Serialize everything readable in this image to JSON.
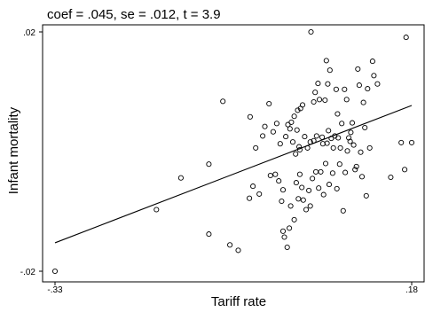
{
  "chart_data": {
    "type": "scatter",
    "annotation": "coef = .045, se = .012, t = 3.9",
    "xlabel": "Tariff rate",
    "ylabel": "Infant mortality",
    "xlim": [
      -0.33,
      0.18
    ],
    "ylim": [
      -0.02,
      0.02
    ],
    "x_ticks": [
      {
        "value": -0.33,
        "label": "-.33"
      },
      {
        "value": 0.18,
        "label": ".18"
      }
    ],
    "y_ticks": [
      {
        "value": 0.02,
        "label": ".02"
      },
      {
        "value": -0.02,
        "label": "-.02"
      }
    ],
    "grid": false,
    "fit_line": {
      "slope": 0.045,
      "intercept": -0.0004
    },
    "points": [
      [
        -0.33,
        -0.02
      ],
      [
        -0.185,
        -0.0097
      ],
      [
        -0.15,
        -0.0044
      ],
      [
        -0.11,
        -0.0138
      ],
      [
        -0.11,
        -0.0021
      ],
      [
        -0.09,
        0.0084
      ],
      [
        -0.08,
        -0.0156
      ],
      [
        -0.068,
        -0.0165
      ],
      [
        -0.052,
        -0.0078
      ],
      [
        -0.051,
        0.0058
      ],
      [
        -0.047,
        -0.0058
      ],
      [
        -0.043,
        0.0006
      ],
      [
        -0.038,
        -0.0071
      ],
      [
        -0.033,
        0.0026
      ],
      [
        -0.03,
        0.0042
      ],
      [
        -0.024,
        0.008
      ],
      [
        -0.022,
        -0.004
      ],
      [
        -0.018,
        0.0033
      ],
      [
        -0.015,
        -0.0038
      ],
      [
        -0.013,
        0.0047
      ],
      [
        -0.01,
        -0.0049
      ],
      [
        -0.008,
        0.0013
      ],
      [
        -0.006,
        -0.0083
      ],
      [
        -0.004,
        -0.0064
      ],
      [
        -0.004,
        -0.0133
      ],
      [
        -0.002,
        -0.0143
      ],
      [
        0.0,
        0.0025
      ],
      [
        0.002,
        -0.016
      ],
      [
        0.003,
        0.0045
      ],
      [
        0.005,
        -0.0128
      ],
      [
        0.006,
        0.0038
      ],
      [
        0.007,
        -0.0091
      ],
      [
        0.008,
        0.0049
      ],
      [
        0.01,
        0.0016
      ],
      [
        0.012,
        0.0059
      ],
      [
        0.012,
        -0.0114
      ],
      [
        0.014,
        -0.0004
      ],
      [
        0.015,
        -0.0052
      ],
      [
        0.016,
        0.0036
      ],
      [
        0.017,
        0.0069
      ],
      [
        0.018,
        -0.0079
      ],
      [
        0.019,
        0.0008
      ],
      [
        0.02,
        -0.0038
      ],
      [
        0.02,
        0.0003
      ],
      [
        0.021,
        0.0072
      ],
      [
        0.023,
        -0.006
      ],
      [
        0.024,
        0.0078
      ],
      [
        0.025,
        -0.0081
      ],
      [
        0.027,
        0.0025
      ],
      [
        0.029,
        -0.0097
      ],
      [
        0.031,
        0.0006
      ],
      [
        0.033,
        -0.0065
      ],
      [
        0.035,
        0.0016
      ],
      [
        0.035,
        -0.0091
      ],
      [
        0.036,
        0.02
      ],
      [
        0.038,
        -0.0045
      ],
      [
        0.04,
        0.0083
      ],
      [
        0.04,
        0.0018
      ],
      [
        0.042,
        0.0099
      ],
      [
        0.043,
        -0.0034
      ],
      [
        0.044,
        0.0026
      ],
      [
        0.046,
        0.0114
      ],
      [
        0.047,
        -0.0061
      ],
      [
        0.048,
        0.0087
      ],
      [
        0.05,
        -0.0034
      ],
      [
        0.052,
        0.0024
      ],
      [
        0.053,
        0.0013
      ],
      [
        0.054,
        -0.0072
      ],
      [
        0.056,
        0.0086
      ],
      [
        0.057,
        -0.002
      ],
      [
        0.058,
        0.0152
      ],
      [
        0.059,
        0.0014
      ],
      [
        0.06,
        0.0113
      ],
      [
        0.061,
        0.0035
      ],
      [
        0.062,
        -0.0055
      ],
      [
        0.063,
        0.0136
      ],
      [
        0.065,
        0.0022
      ],
      [
        0.067,
        -0.0036
      ],
      [
        0.068,
        0.0006
      ],
      [
        0.07,
        0.0026
      ],
      [
        0.072,
        0.0104
      ],
      [
        0.073,
        -0.0062
      ],
      [
        0.074,
        0.0063
      ],
      [
        0.075,
        0.0023
      ],
      [
        0.077,
        -0.0021
      ],
      [
        0.078,
        0.0006
      ],
      [
        0.08,
        0.0047
      ],
      [
        0.082,
        -0.0099
      ],
      [
        0.084,
        0.0104
      ],
      [
        0.085,
        -0.0035
      ],
      [
        0.087,
        0.0087
      ],
      [
        0.088,
        0.0001
      ],
      [
        0.09,
        0.0023
      ],
      [
        0.092,
        0.0017
      ],
      [
        0.093,
        0.0032
      ],
      [
        0.095,
        0.0048
      ],
      [
        0.097,
        0.0011
      ],
      [
        0.099,
        -0.003
      ],
      [
        0.101,
        -0.0025
      ],
      [
        0.103,
        0.0138
      ],
      [
        0.105,
        0.0111
      ],
      [
        0.107,
        -0.0001
      ],
      [
        0.109,
        -0.0042
      ],
      [
        0.111,
        0.0082
      ],
      [
        0.113,
        0.004
      ],
      [
        0.115,
        -0.0074
      ],
      [
        0.117,
        0.0105
      ],
      [
        0.12,
        0.0006
      ],
      [
        0.124,
        0.0151
      ],
      [
        0.126,
        0.0127
      ],
      [
        0.131,
        0.0113
      ],
      [
        0.15,
        -0.0043
      ],
      [
        0.165,
        0.0015
      ],
      [
        0.17,
        -0.003
      ],
      [
        0.172,
        0.0191
      ],
      [
        0.18,
        0.0015
      ]
    ]
  }
}
